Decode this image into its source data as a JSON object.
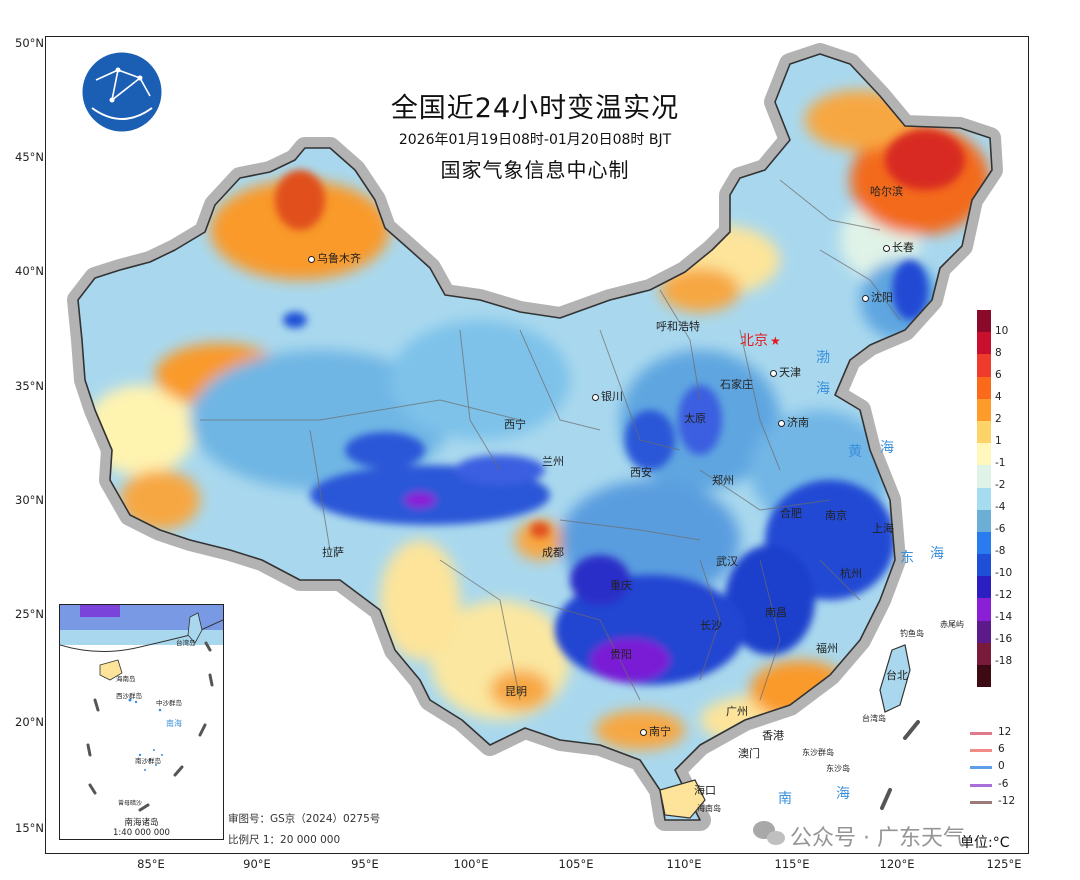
{
  "title": "全国近24小时变温实况",
  "subtitle": "2026年01月19日08时-01月20日08时 BJT",
  "producer": "国家气象信息中心制",
  "latitude_labels": [
    "50°N",
    "45°N",
    "40°N",
    "35°N",
    "30°N",
    "25°N",
    "20°N",
    "15°N"
  ],
  "longitude_labels": [
    "85°E",
    "90°E",
    "95°E",
    "100°E",
    "105°E",
    "110°E",
    "115°E",
    "120°E",
    "125°E"
  ],
  "capital": "北京",
  "cities": [
    "乌鲁木齐",
    "哈尔滨",
    "长春",
    "沈阳",
    "呼和浩特",
    "天津",
    "石家庄",
    "银川",
    "太原",
    "济南",
    "西宁",
    "兰州",
    "郑州",
    "西安",
    "合肥",
    "南京",
    "上海",
    "拉萨",
    "成都",
    "武汉",
    "杭州",
    "重庆",
    "长沙",
    "南昌",
    "福州",
    "贵阳",
    "台北",
    "昆明",
    "广州",
    "南宁",
    "香港",
    "澳门",
    "海口"
  ],
  "seas": [
    "渤",
    "海",
    "黄",
    "海",
    "东",
    "海",
    "南",
    "海"
  ],
  "islands": [
    "钓鱼岛",
    "赤尾屿",
    "台湾岛",
    "东沙群岛",
    "东沙岛",
    "海南岛"
  ],
  "inset": {
    "title": "南海诸岛",
    "scale": "1:40 000 000",
    "labels": [
      "台湾岛",
      "南海",
      "海南岛",
      "西沙群岛",
      "中沙群岛",
      "南沙群岛",
      "曾母暗沙"
    ]
  },
  "review_number": "审图号：GS京（2024）0275号",
  "scale_text": "比例尺 1：20 000 000",
  "colorbar": {
    "labels": [
      "10",
      "8",
      "6",
      "4",
      "2",
      "1",
      "-1",
      "-2",
      "-4",
      "-6",
      "-8",
      "-10",
      "-12",
      "-14",
      "-16",
      "-18"
    ],
    "colors": [
      "#8c0a29",
      "#c8102e",
      "#ef3b2c",
      "#fb6a1a",
      "#fd9c2a",
      "#fdd36a",
      "#fff7bc",
      "#e0f3e8",
      "#a6dcef",
      "#6baed6",
      "#2b7bf0",
      "#1f4fd6",
      "#2b1fc2",
      "#8a1fd6",
      "#5c1a8a",
      "#7a1a3a",
      "#3d0a14"
    ]
  },
  "line_legend": {
    "labels": [
      "12",
      "6",
      "0",
      "-6",
      "-12"
    ],
    "colors": [
      "#e07a8a",
      "#f28a8a",
      "#5f9ee8",
      "#a86fd6",
      "#9c7a7a"
    ]
  },
  "unit": "单位:°C",
  "watermark": "公众号 · 广东天气"
}
